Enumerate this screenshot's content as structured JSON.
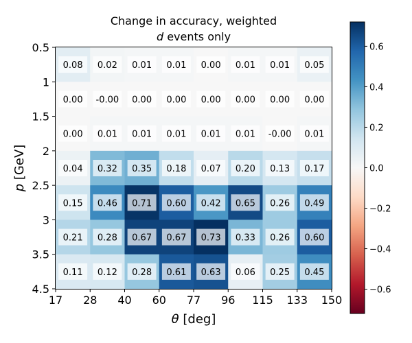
{
  "chart_data": {
    "type": "heatmap",
    "title_line1": "Change in accuracy, weighted",
    "title_line2_italic": "d",
    "title_line2_rest": " events only",
    "xlabel_symbol": "θ",
    "xlabel_unit": " [deg]",
    "ylabel_symbol": "p",
    "ylabel_unit": " [GeV]",
    "x_tick_labels": [
      "17",
      "28",
      "40",
      "60",
      "77",
      "96",
      "115",
      "133",
      "150"
    ],
    "y_tick_labels": [
      "0.5",
      "1",
      "1.5",
      "2",
      "2.5",
      "3",
      "3.5",
      "4.5"
    ],
    "x_bin_edges": [
      17,
      28,
      40,
      60,
      77,
      96,
      115,
      133,
      150
    ],
    "y_bin_edges": [
      0.5,
      1,
      1.5,
      2,
      2.5,
      3,
      3.5,
      4.5
    ],
    "rows": [
      {
        "y_range": "0.5–1",
        "values": [
          0.08,
          0.02,
          0.01,
          0.01,
          0.0,
          0.01,
          0.01,
          0.05
        ],
        "labels": [
          "0.08",
          "0.02",
          "0.01",
          "0.01",
          "0.00",
          "0.01",
          "0.01",
          "0.05"
        ]
      },
      {
        "y_range": "1–1.5",
        "values": [
          0.0,
          -0.0,
          0.0,
          0.0,
          0.0,
          0.0,
          0.0,
          0.0
        ],
        "labels": [
          "0.00",
          "-0.00",
          "0.00",
          "0.00",
          "0.00",
          "0.00",
          "0.00",
          "0.00"
        ]
      },
      {
        "y_range": "1.5–2",
        "values": [
          0.0,
          0.01,
          0.01,
          0.01,
          0.01,
          0.01,
          -0.0,
          0.01
        ],
        "labels": [
          "0.00",
          "0.01",
          "0.01",
          "0.01",
          "0.01",
          "0.01",
          "-0.00",
          "0.01"
        ]
      },
      {
        "y_range": "2–2.5",
        "values": [
          0.04,
          0.32,
          0.35,
          0.18,
          0.07,
          0.2,
          0.13,
          0.17
        ],
        "labels": [
          "0.04",
          "0.32",
          "0.35",
          "0.18",
          "0.07",
          "0.20",
          "0.13",
          "0.17"
        ]
      },
      {
        "y_range": "2.5–3",
        "values": [
          0.15,
          0.46,
          0.71,
          0.6,
          0.42,
          0.65,
          0.26,
          0.49
        ],
        "labels": [
          "0.15",
          "0.46",
          "0.71",
          "0.60",
          "0.42",
          "0.65",
          "0.26",
          "0.49"
        ]
      },
      {
        "y_range": "3–3.5",
        "values": [
          0.21,
          0.28,
          0.67,
          0.67,
          0.73,
          0.33,
          0.26,
          0.6
        ],
        "labels": [
          "0.21",
          "0.28",
          "0.67",
          "0.67",
          "0.73",
          "0.33",
          "0.26",
          "0.60"
        ]
      },
      {
        "y_range": "3.5–4.5",
        "values": [
          0.11,
          0.12,
          0.28,
          0.61,
          0.63,
          0.06,
          0.25,
          0.45
        ],
        "labels": [
          "0.11",
          "0.12",
          "0.28",
          "0.61",
          "0.63",
          "0.06",
          "0.25",
          "0.45"
        ]
      }
    ],
    "colorbar": {
      "colormap": "RdBu",
      "vmin": -0.72,
      "vmax": 0.72,
      "ticks": [
        0.6,
        0.4,
        0.2,
        0.0,
        -0.2,
        -0.4,
        -0.6
      ],
      "tick_labels": [
        "0.6",
        "0.4",
        "0.2",
        "0.0",
        "−0.2",
        "−0.4",
        "−0.6"
      ]
    },
    "cell_label_box_color": "#ffffff",
    "cell_label_box_opacity": 0.7
  }
}
